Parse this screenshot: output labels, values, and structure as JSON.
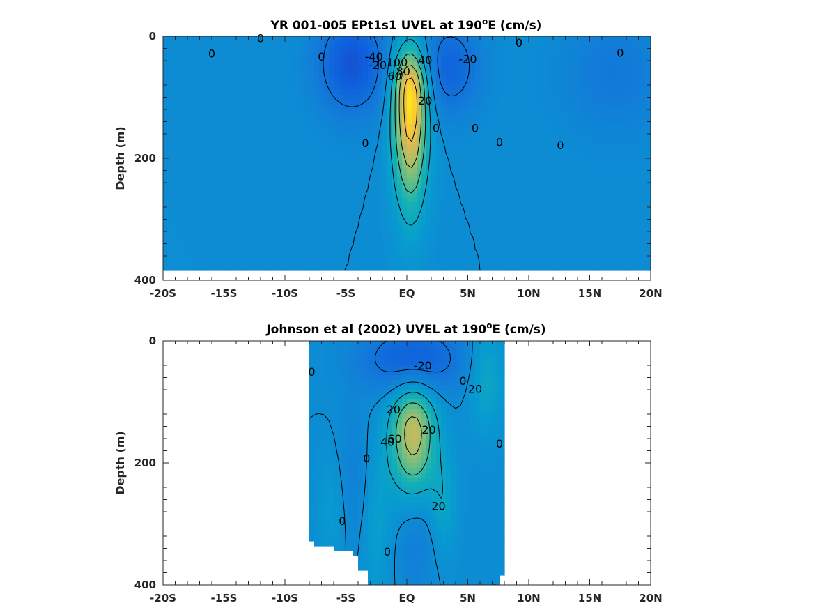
{
  "chart_data": [
    {
      "type": "heatmap",
      "title_main": "YR 001-005 EPt1s1 UVEL at 190",
      "title_sup": "o",
      "title_end": "E (cm/s)",
      "ylabel": "Depth (m)",
      "xlabel": "",
      "xlim": [
        -20,
        20
      ],
      "ylim": [
        0,
        400
      ],
      "y_reversed": true,
      "xticks": [
        -20,
        -15,
        -10,
        -5,
        0,
        5,
        10,
        15,
        20
      ],
      "xtick_labels": [
        "-20S",
        "-15S",
        "-10S",
        "-5S",
        "EQ",
        "5N",
        "10N",
        "15N",
        "20N"
      ],
      "yticks": [
        0,
        200,
        400
      ],
      "ytick_labels": [
        "0",
        "200",
        "400"
      ],
      "data_max_depth": 382,
      "features": [
        {
          "kind": "eastward-core",
          "lat": 0.3,
          "depth": 95,
          "peak": 100,
          "sigma_lat": 1.0,
          "sigma_depth_upper": 55,
          "sigma_depth_lower": 120
        },
        {
          "kind": "westward",
          "lat": -4.5,
          "depth": 45,
          "peak": -40,
          "sigma_lat": 2.0,
          "sigma_depth": 60
        },
        {
          "kind": "westward",
          "lat": 3.5,
          "depth": 50,
          "peak": -30,
          "sigma_lat": 1.8,
          "sigma_depth": 55
        },
        {
          "kind": "westward",
          "lat": 17,
          "depth": 60,
          "peak": -15,
          "sigma_lat": 3.0,
          "sigma_depth": 70
        }
      ],
      "contour_labels": [
        {
          "text": "0",
          "lat": -12,
          "depth": 3
        },
        {
          "text": "0",
          "lat": -16,
          "depth": 28
        },
        {
          "text": "0",
          "lat": -7,
          "depth": 33
        },
        {
          "text": "-40",
          "lat": -2.7,
          "depth": 33
        },
        {
          "text": "-20",
          "lat": -2.4,
          "depth": 47
        },
        {
          "text": "100",
          "lat": -0.8,
          "depth": 42
        },
        {
          "text": "60",
          "lat": -1.0,
          "depth": 65
        },
        {
          "text": "80",
          "lat": -0.3,
          "depth": 57
        },
        {
          "text": "40",
          "lat": 1.5,
          "depth": 39
        },
        {
          "text": "-20",
          "lat": 5.0,
          "depth": 37
        },
        {
          "text": "0",
          "lat": 9.2,
          "depth": 10
        },
        {
          "text": "0",
          "lat": 17.5,
          "depth": 27
        },
        {
          "text": "20",
          "lat": 1.5,
          "depth": 105
        },
        {
          "text": "0",
          "lat": 2.4,
          "depth": 150
        },
        {
          "text": "0",
          "lat": 5.6,
          "depth": 150
        },
        {
          "text": "0",
          "lat": 7.6,
          "depth": 173
        },
        {
          "text": "0",
          "lat": 12.6,
          "depth": 178
        },
        {
          "text": "0",
          "lat": -3.4,
          "depth": 175
        }
      ]
    },
    {
      "type": "heatmap",
      "title_main": "Johnson et al (2002) UVEL at 190",
      "title_sup": "o",
      "title_end": "E (cm/s)",
      "ylabel": "Depth (m)",
      "xlabel": "",
      "xlim": [
        -20,
        20
      ],
      "ylim": [
        0,
        400
      ],
      "y_reversed": true,
      "xticks": [
        -20,
        -15,
        -10,
        -5,
        0,
        5,
        10,
        15,
        20
      ],
      "xtick_labels": [
        "-20S",
        "-15S",
        "-10S",
        "-5S",
        "EQ",
        "5N",
        "10N",
        "15N",
        "20N"
      ],
      "yticks": [
        0,
        200,
        400
      ],
      "ytick_labels": [
        "0",
        "200",
        "400"
      ],
      "data_lat_range": [
        -8,
        8
      ],
      "features": [
        {
          "kind": "eastward-core",
          "lat": 0.5,
          "depth": 150,
          "peak": 70,
          "sigma_lat": 1.3,
          "sigma_depth_upper": 55,
          "sigma_depth_lower": 70
        },
        {
          "kind": "westward",
          "lat": 0.5,
          "depth": 30,
          "peak": -35,
          "sigma_lat": 3.0,
          "sigma_depth": 40
        },
        {
          "kind": "eastward",
          "lat": 6.5,
          "depth": 60,
          "peak": 22,
          "sigma_lat": 1.0,
          "sigma_depth": 60
        },
        {
          "kind": "eastward",
          "lat": 3.0,
          "depth": 270,
          "peak": 18,
          "sigma_lat": 0.8,
          "sigma_depth": 60
        },
        {
          "kind": "eastward",
          "lat": -2.5,
          "depth": 300,
          "peak": 15,
          "sigma_lat": 0.9,
          "sigma_depth": 90
        },
        {
          "kind": "eastward",
          "lat": -6.2,
          "depth": 280,
          "peak": 12,
          "sigma_lat": 0.8,
          "sigma_depth": 60
        },
        {
          "kind": "westward",
          "lat": 0.8,
          "depth": 330,
          "peak": -12,
          "sigma_lat": 1.2,
          "sigma_depth": 60
        },
        {
          "kind": "westward",
          "lat": -4.2,
          "depth": 230,
          "peak": -10,
          "sigma_lat": 1.0,
          "sigma_depth": 80
        }
      ],
      "contour_labels": [
        {
          "text": "0",
          "lat": -7.8,
          "depth": 50
        },
        {
          "text": "-20",
          "lat": 1.3,
          "depth": 40
        },
        {
          "text": "0",
          "lat": 4.6,
          "depth": 65
        },
        {
          "text": "20",
          "lat": 5.6,
          "depth": 78
        },
        {
          "text": "20",
          "lat": -1.1,
          "depth": 112
        },
        {
          "text": "20",
          "lat": 1.8,
          "depth": 145
        },
        {
          "text": "40",
          "lat": -1.6,
          "depth": 165
        },
        {
          "text": "60",
          "lat": -1.0,
          "depth": 160
        },
        {
          "text": "0",
          "lat": 7.6,
          "depth": 168
        },
        {
          "text": "0",
          "lat": -3.3,
          "depth": 192
        },
        {
          "text": "20",
          "lat": 2.6,
          "depth": 270
        },
        {
          "text": "0",
          "lat": -5.3,
          "depth": 295
        },
        {
          "text": "0",
          "lat": -1.6,
          "depth": 345
        }
      ]
    }
  ]
}
